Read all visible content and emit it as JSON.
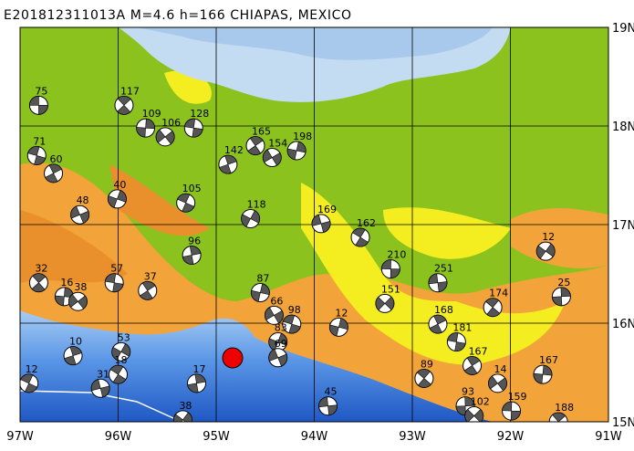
{
  "title": "E201812311013A M=4.6 h=166 CHIAPAS, MEXICO",
  "x_ticks": [
    {
      "value": -97,
      "label": "97W"
    },
    {
      "value": -96,
      "label": "96W"
    },
    {
      "value": -95,
      "label": "95W"
    },
    {
      "value": -94,
      "label": "94W"
    },
    {
      "value": -93,
      "label": "93W"
    },
    {
      "value": -92,
      "label": "92W"
    },
    {
      "value": -91,
      "label": "91W"
    }
  ],
  "y_ticks": [
    {
      "value": 19,
      "label": "19N"
    },
    {
      "value": 18,
      "label": "18N"
    },
    {
      "value": 17,
      "label": "17N"
    },
    {
      "value": 16,
      "label": "16N"
    },
    {
      "value": 15,
      "label": "15N"
    }
  ],
  "events": [
    {
      "label": "75",
      "lon": -96.81,
      "lat": 18.21
    },
    {
      "label": "117",
      "lon": -95.94,
      "lat": 18.21
    },
    {
      "label": "109",
      "lon": -95.72,
      "lat": 17.98
    },
    {
      "label": "106",
      "lon": -95.52,
      "lat": 17.89
    },
    {
      "label": "128",
      "lon": -95.23,
      "lat": 17.98
    },
    {
      "label": "165",
      "lon": -94.6,
      "lat": 17.8
    },
    {
      "label": "198",
      "lon": -94.18,
      "lat": 17.75
    },
    {
      "label": "154",
      "lon": -94.43,
      "lat": 17.68
    },
    {
      "label": "71",
      "lon": -96.83,
      "lat": 17.7
    },
    {
      "label": "60",
      "lon": -96.66,
      "lat": 17.52
    },
    {
      "label": "40",
      "lon": -96.01,
      "lat": 17.26
    },
    {
      "label": "48",
      "lon": -96.39,
      "lat": 17.1
    },
    {
      "label": "105",
      "lon": -95.31,
      "lat": 17.22
    },
    {
      "label": "142",
      "lon": -94.88,
      "lat": 17.61
    },
    {
      "label": "118",
      "lon": -94.65,
      "lat": 17.06
    },
    {
      "label": "169",
      "lon": -93.93,
      "lat": 17.01
    },
    {
      "label": "162",
      "lon": -93.53,
      "lat": 16.87
    },
    {
      "label": "96",
      "lon": -95.25,
      "lat": 16.69
    },
    {
      "label": "12",
      "lon": -91.64,
      "lat": 16.73
    },
    {
      "label": "251",
      "lon": -92.74,
      "lat": 16.41
    },
    {
      "label": "174",
      "lon": -92.18,
      "lat": 16.16
    },
    {
      "label": "25",
      "lon": -91.48,
      "lat": 16.27
    },
    {
      "label": "151",
      "lon": -93.28,
      "lat": 16.2
    },
    {
      "label": "210",
      "lon": -93.22,
      "lat": 16.55
    },
    {
      "label": "32",
      "lon": -96.81,
      "lat": 16.41
    },
    {
      "label": "16",
      "lon": -96.55,
      "lat": 16.27
    },
    {
      "label": "38",
      "lon": -96.41,
      "lat": 16.22
    },
    {
      "label": "57",
      "lon": -96.04,
      "lat": 16.41
    },
    {
      "label": "37",
      "lon": -95.7,
      "lat": 16.33
    },
    {
      "label": "87",
      "lon": -94.55,
      "lat": 16.31
    },
    {
      "label": "66",
      "lon": -94.41,
      "lat": 16.08
    },
    {
      "label": "98",
      "lon": -94.23,
      "lat": 15.99
    },
    {
      "label": "168",
      "lon": -92.74,
      "lat": 15.99
    },
    {
      "label": "83",
      "lon": -94.37,
      "lat": 15.81
    },
    {
      "label": "69",
      "lon": -94.37,
      "lat": 15.65
    },
    {
      "label": "12",
      "lon": -96.91,
      "lat": 15.39
    },
    {
      "label": "10",
      "lon": -96.46,
      "lat": 15.67
    },
    {
      "label": "53",
      "lon": -95.97,
      "lat": 15.71
    },
    {
      "label": "31",
      "lon": -96.18,
      "lat": 15.34
    },
    {
      "label": "18",
      "lon": -96.0,
      "lat": 15.48
    },
    {
      "label": "17",
      "lon": -95.2,
      "lat": 15.39
    },
    {
      "label": "38",
      "lon": -95.34,
      "lat": 15.02
    },
    {
      "label": "45",
      "lon": -93.86,
      "lat": 15.16
    },
    {
      "label": "89",
      "lon": -92.88,
      "lat": 15.44
    },
    {
      "label": "93",
      "lon": -92.46,
      "lat": 15.16
    },
    {
      "label": "102",
      "lon": -92.37,
      "lat": 15.06
    },
    {
      "label": "159",
      "lon": -91.99,
      "lat": 15.11
    },
    {
      "label": "188",
      "lon": -91.51,
      "lat": 15.0
    },
    {
      "label": "167",
      "lon": -91.67,
      "lat": 15.48
    },
    {
      "label": "14",
      "lon": -92.13,
      "lat": 15.39
    },
    {
      "label": "181",
      "lon": -92.55,
      "lat": 15.81
    },
    {
      "label": "167",
      "lon": -92.39,
      "lat": 15.57
    },
    {
      "label": "12",
      "lon": -93.75,
      "lat": 15.96
    }
  ]
}
